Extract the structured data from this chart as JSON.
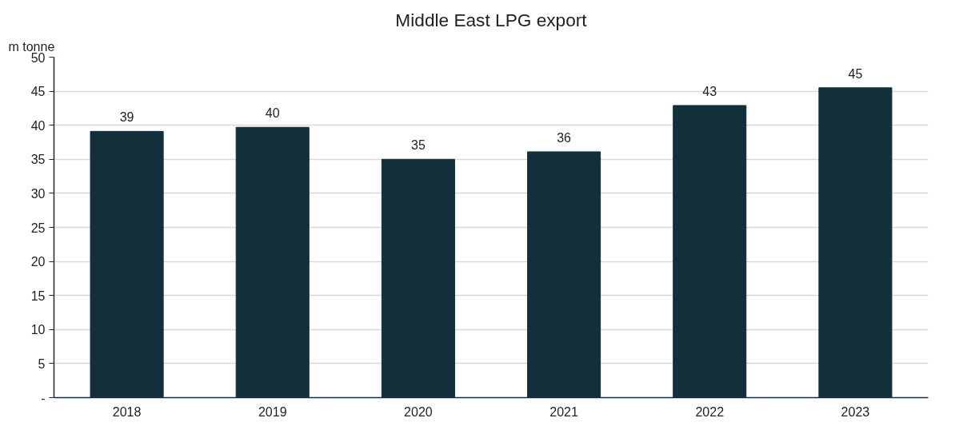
{
  "chart_data": {
    "type": "bar",
    "title": "Middle East LPG export",
    "ylabel": "m tonne",
    "categories": [
      "2018",
      "2019",
      "2020",
      "2021",
      "2022",
      "2023"
    ],
    "values": [
      39.1,
      39.7,
      35.0,
      36.1,
      42.9,
      45.5
    ],
    "value_labels": [
      "39",
      "40",
      "35",
      "36",
      "43",
      "45"
    ],
    "color": "#142f3c",
    "ylim": [
      0,
      50
    ],
    "yticks": [
      {
        "value": 0,
        "label": "-"
      },
      5,
      10,
      15,
      20,
      25,
      30,
      35,
      40,
      45,
      50
    ],
    "grid": "y"
  }
}
